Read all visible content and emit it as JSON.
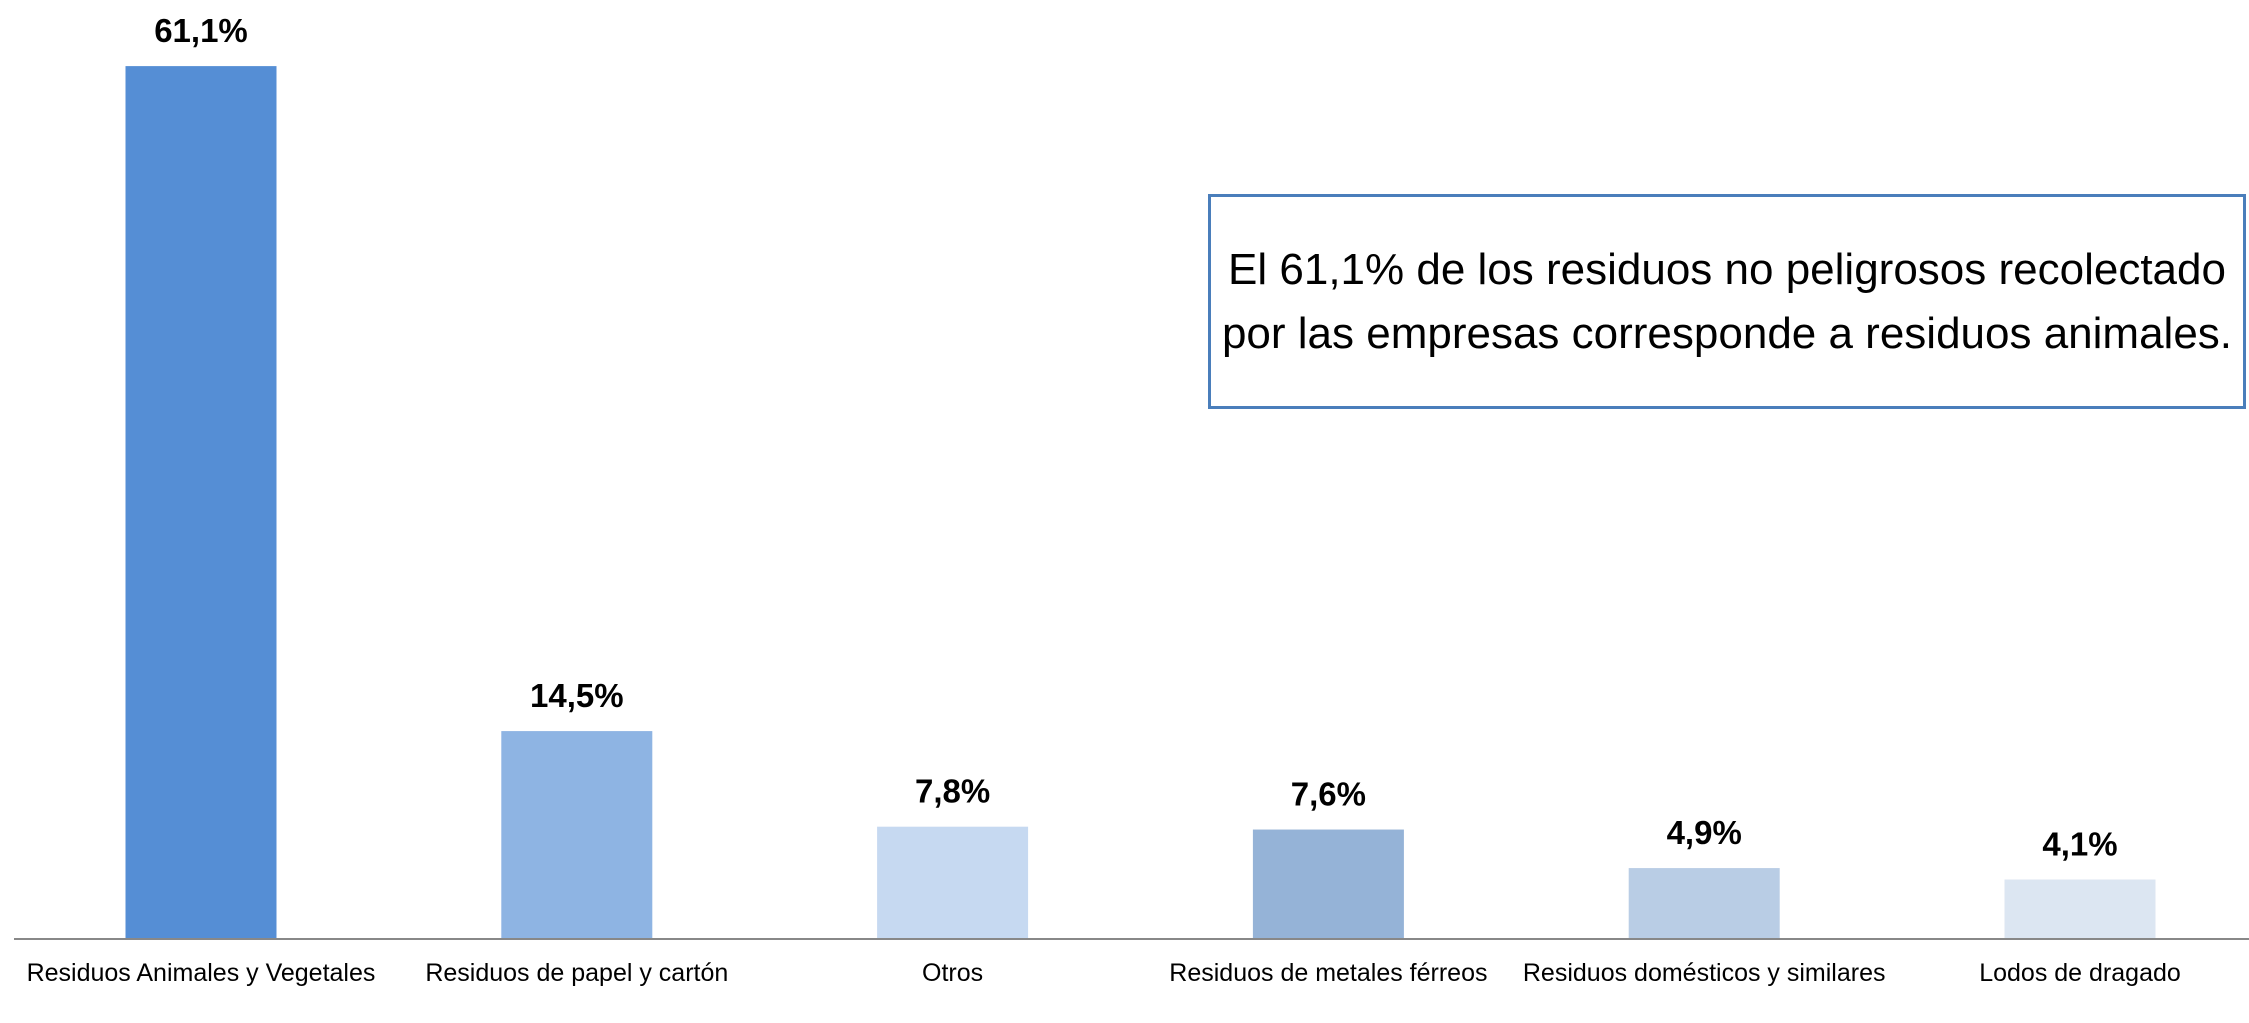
{
  "chart_data": {
    "type": "bar",
    "categories": [
      "Residuos Animales y Vegetales",
      "Residuos de papel y cartón",
      "Otros",
      "Residuos de metales férreos",
      "Residuos domésticos y similares",
      "Lodos de dragado"
    ],
    "values": [
      61.1,
      14.5,
      7.8,
      7.6,
      4.9,
      4.1
    ],
    "value_labels": [
      "61,1%",
      "14,5%",
      "7,8%",
      "7,6%",
      "4,9%",
      "4,1%"
    ],
    "colors": [
      "#558ed5",
      "#8eb4e3",
      "#c6d9f1",
      "#95b3d7",
      "#b9cde5",
      "#dce6f2"
    ],
    "annotation": "El 61,1% de los residuos no peligrosos recolectado por las empresas corresponde a residuos animales."
  }
}
